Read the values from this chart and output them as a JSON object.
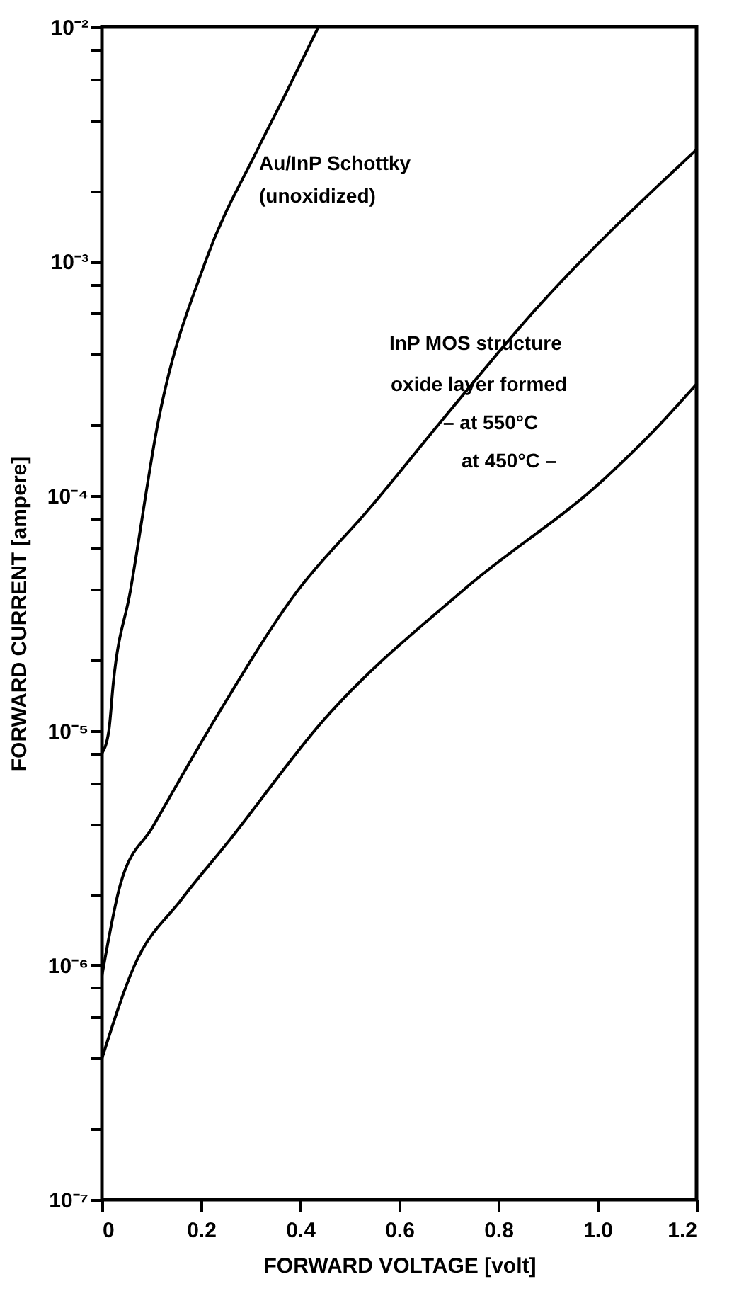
{
  "chart_data": {
    "type": "line",
    "xlabel": "FORWARD  VOLTAGE [volt]",
    "ylabel": "FORWARD  CURRENT [ampere]",
    "log": "y",
    "grid": false,
    "marker": "none",
    "line_style": "solid",
    "xlim": [
      0,
      1.2
    ],
    "ylim": [
      1e-07,
      0.01
    ],
    "xticks": [
      0,
      0.2,
      0.4,
      0.6,
      0.8,
      {
        "value": 1,
        "label": "1.0"
      },
      1.2
    ],
    "yticks": [
      {
        "value": 1e-07,
        "label": "10⁻⁷"
      },
      {
        "value": 2e-07,
        "label": null
      },
      {
        "value": 4e-07,
        "label": null
      },
      {
        "value": 6e-07,
        "label": null
      },
      {
        "value": 8e-07,
        "label": null
      },
      {
        "value": 1e-06,
        "label": "10⁻⁶"
      },
      {
        "value": 2e-06,
        "label": null
      },
      {
        "value": 4e-06,
        "label": null
      },
      {
        "value": 6e-06,
        "label": null
      },
      {
        "value": 8e-06,
        "label": null
      },
      {
        "value": 1e-05,
        "label": "10⁻⁵"
      },
      {
        "value": 2e-05,
        "label": null
      },
      {
        "value": 4e-05,
        "label": null
      },
      {
        "value": 6e-05,
        "label": null
      },
      {
        "value": 8e-05,
        "label": null
      },
      {
        "value": 0.0001,
        "label": "10⁻⁴"
      },
      {
        "value": 0.0002,
        "label": null
      },
      {
        "value": 0.0004,
        "label": null
      },
      {
        "value": 0.0006,
        "label": null
      },
      {
        "value": 0.0008,
        "label": null
      },
      {
        "value": 0.001,
        "label": "10⁻³"
      },
      {
        "value": 0.002,
        "label": null
      },
      {
        "value": 0.004,
        "label": null
      },
      {
        "value": 0.006,
        "label": null
      },
      {
        "value": 0.008,
        "label": null
      },
      {
        "value": 0.01,
        "label": "10⁻²"
      }
    ],
    "series": [
      {
        "color": "#000000",
        "x": [
          0,
          0.014,
          0.023,
          0.057,
          0.114,
          0.209,
          0.314,
          0.371,
          0.437
        ],
        "values": [
          8e-06,
          1e-05,
          1.6e-05,
          3.9e-05,
          0.00021,
          0.001,
          0.003,
          0.0052,
          0.01
        ]
      },
      {
        "color": "#000000",
        "x": [
          0,
          0.037,
          0.103,
          0.237,
          0.389,
          0.543,
          0.686,
          0.874,
          1.2
        ],
        "values": [
          9e-07,
          2.2e-06,
          3.9e-06,
          1.2e-05,
          3.8e-05,
          9e-05,
          0.00021,
          0.00062,
          0.003
        ]
      },
      {
        "color": "#000000",
        "x": [
          0,
          0.066,
          0.16,
          0.257,
          0.446,
          0.731,
          1.017,
          1.114,
          1.2
        ],
        "values": [
          4e-07,
          1e-06,
          1.9e-06,
          3.4e-06,
          1.1e-05,
          4e-05,
          0.00012,
          0.00019,
          0.0003
        ]
      }
    ],
    "annotations": [
      "Au/InP Schottky",
      "(unoxidized)",
      "InP MOS structure",
      "oxide layer formed",
      "– at 550°C",
      "at 450°C –"
    ]
  }
}
